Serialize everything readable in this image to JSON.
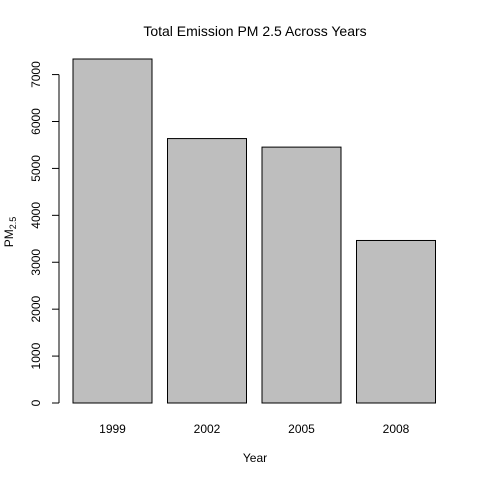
{
  "chart_data": {
    "type": "bar",
    "title": "Total Emission PM 2.5 Across Years",
    "xlabel": "Year",
    "ylabel": {
      "main": "PM",
      "sub": "2.5"
    },
    "categories": [
      "1999",
      "2002",
      "2005",
      "2008"
    ],
    "values": [
      7332,
      5636,
      5454,
      3464
    ],
    "ylim": [
      0,
      7332
    ],
    "yticks": [
      0,
      1000,
      2000,
      3000,
      4000,
      5000,
      6000,
      7000
    ],
    "bar_color": "#bebebe",
    "grid": false,
    "legend": "none"
  }
}
